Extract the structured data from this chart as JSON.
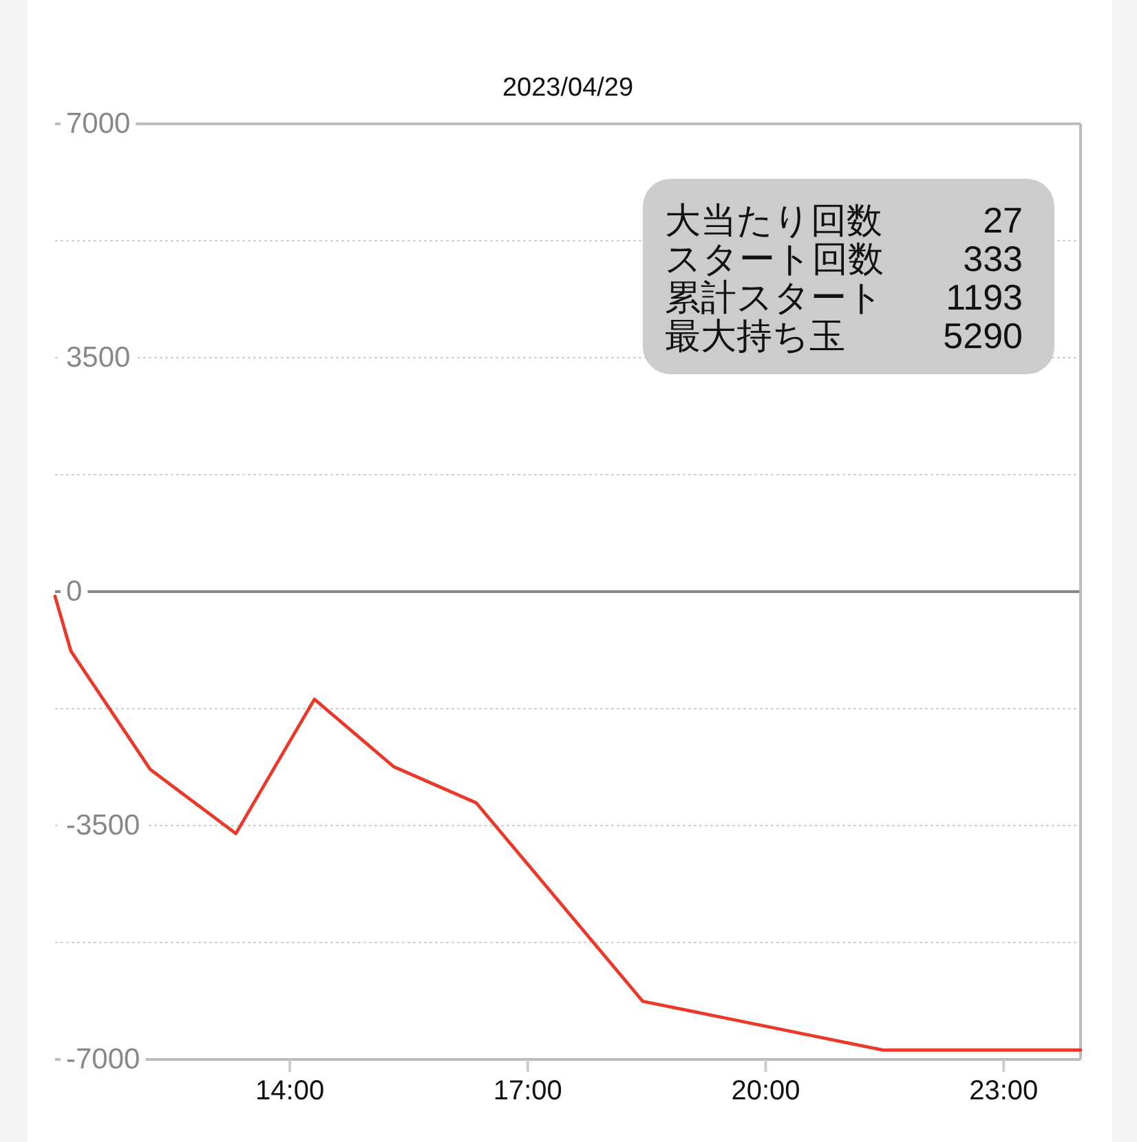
{
  "chart_data": {
    "type": "line",
    "title": "2023/04/29",
    "x": [
      11.04,
      11.24,
      12.24,
      13.32,
      14.31,
      15.31,
      16.35,
      18.45,
      21.48,
      23.97
    ],
    "series": [
      {
        "color": "#e8392a",
        "values": [
          -70,
          -890,
          -2660,
          -3620,
          -1610,
          -2620,
          -3160,
          -6130,
          -6860,
          -6860
        ]
      }
    ],
    "xlim": [
      11.04,
      23.97
    ],
    "xticks": [
      {
        "value": 14,
        "label": "14:00"
      },
      {
        "value": 17,
        "label": "17:00"
      },
      {
        "value": 20,
        "label": "20:00"
      },
      {
        "value": 23,
        "label": "23:00"
      }
    ],
    "ylim": [
      -7000,
      7000
    ],
    "yticks": [
      -7000,
      {
        "value": -5250,
        "label": null
      },
      -3500,
      {
        "value": -1750,
        "label": null
      },
      0,
      {
        "value": 1750,
        "label": null
      },
      3500,
      {
        "value": 5250,
        "label": null
      },
      7000
    ],
    "grid": "y",
    "annotations": [
      "大当たり回数",
      "27",
      "スタート回数",
      "333",
      "累計スタート",
      "1193",
      "最大持ち玉",
      "5290"
    ]
  }
}
